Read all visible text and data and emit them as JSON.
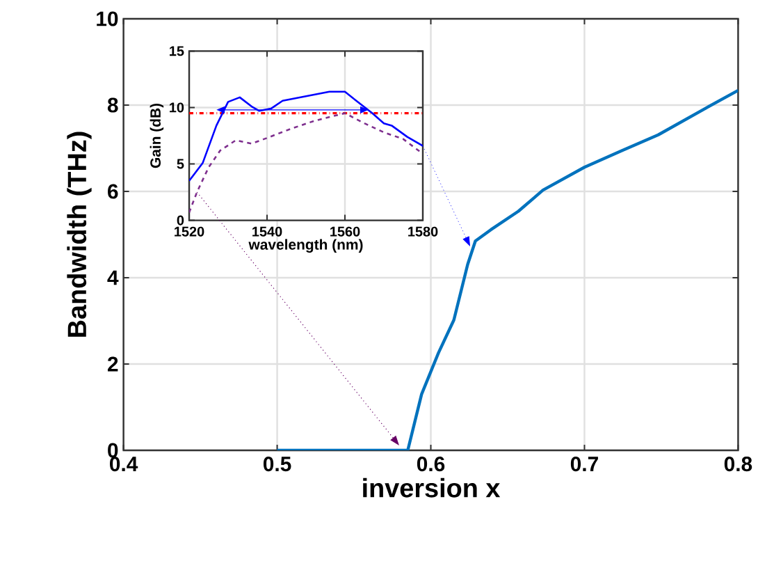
{
  "chart_data": [
    {
      "type": "line",
      "xlabel": "inversion x",
      "ylabel": "Bandwidth (THz)",
      "xlim": [
        0.4,
        0.8
      ],
      "ylim": [
        0,
        10
      ],
      "xticks": [
        0.4,
        0.5,
        0.6,
        0.7,
        0.8
      ],
      "yticks": [
        0,
        2,
        4,
        6,
        8,
        10
      ],
      "grid": true,
      "series": [
        {
          "color": "#0072bd",
          "x": [
            0.5,
            0.585,
            0.594,
            0.605,
            0.615,
            0.624,
            0.629,
            0.639,
            0.657,
            0.673,
            0.7,
            0.724,
            0.748,
            0.778,
            0.8
          ],
          "values": [
            0,
            0,
            1.3,
            2.26,
            3.02,
            4.31,
            4.85,
            5.11,
            5.54,
            6.03,
            6.56,
            6.94,
            7.31,
            7.91,
            8.34
          ]
        }
      ]
    },
    {
      "type": "line",
      "xlabel": "wavelength (nm)",
      "ylabel": "Gain (dB)",
      "xlim": [
        1520,
        1580
      ],
      "ylim": [
        0,
        15
      ],
      "xticks": [
        1520,
        1540,
        1560,
        1580
      ],
      "yticks": [
        0,
        5,
        10,
        15
      ],
      "grid": true,
      "series": [
        {
          "color": "#0000ff",
          "line_style": "solid",
          "x": [
            1520,
            1523.5,
            1527,
            1530,
            1533,
            1536,
            1538,
            1541,
            1544,
            1550,
            1556,
            1560,
            1564,
            1567,
            1570,
            1572,
            1576,
            1580
          ],
          "values": [
            3.5,
            5.1,
            8.4,
            10.5,
            10.9,
            10.1,
            9.7,
            9.9,
            10.6,
            11.0,
            11.4,
            11.4,
            10.3,
            9.5,
            8.6,
            8.4,
            7.4,
            6.6
          ]
        },
        {
          "color": "#7e2f8e",
          "line_style": "dashed",
          "x": [
            1520,
            1522,
            1525,
            1528,
            1532,
            1536,
            1540,
            1546,
            1552,
            1560,
            1565,
            1570,
            1575,
            1580
          ],
          "values": [
            0.7,
            2.5,
            4.7,
            6.2,
            7.1,
            6.8,
            7.3,
            8.1,
            8.8,
            9.5,
            8.6,
            7.8,
            7.2,
            5.9
          ]
        }
      ],
      "ref_lines": [
        {
          "axis": "y",
          "value": 9.5,
          "color": "#ff0000",
          "line_style": "dashdot"
        }
      ]
    }
  ]
}
